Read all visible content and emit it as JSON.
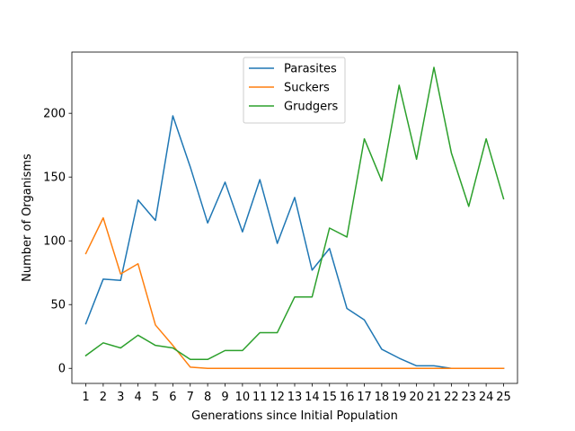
{
  "chart_data": {
    "type": "line",
    "title": "",
    "xlabel": "Generations since Initial Population",
    "ylabel": "Number of Organisms",
    "x": [
      1,
      2,
      3,
      4,
      5,
      6,
      7,
      8,
      9,
      10,
      11,
      12,
      13,
      14,
      15,
      16,
      17,
      18,
      19,
      20,
      21,
      22,
      23,
      24,
      25
    ],
    "x_tick_labels": [
      "1",
      "2",
      "3",
      "4",
      "5",
      "6",
      "7",
      "8",
      "9",
      "10",
      "11",
      "12",
      "13",
      "14",
      "15",
      "16",
      "17",
      "18",
      "19",
      "20",
      "21",
      "22",
      "23",
      "24",
      "25"
    ],
    "y_ticks": [
      0,
      50,
      100,
      150,
      200
    ],
    "y_tick_labels": [
      "0",
      "50",
      "100",
      "150",
      "200"
    ],
    "xlim": [
      0.2,
      25.8
    ],
    "ylim": [
      -11.8,
      248
    ],
    "grid": false,
    "legend_position": "top-center",
    "series": [
      {
        "name": "Parasites",
        "color": "#1f77b4",
        "values": [
          35,
          70,
          69,
          132,
          116,
          198,
          158,
          114,
          146,
          107,
          148,
          98,
          134,
          77,
          94,
          47,
          38,
          15,
          8,
          2,
          2,
          0,
          0,
          0,
          0
        ]
      },
      {
        "name": "Suckers",
        "color": "#ff7f0e",
        "values": [
          90,
          118,
          74,
          82,
          34,
          18,
          1,
          0,
          0,
          0,
          0,
          0,
          0,
          0,
          0,
          0,
          0,
          0,
          0,
          0,
          0,
          0,
          0,
          0,
          0
        ]
      },
      {
        "name": "Grudgers",
        "color": "#2ca02c",
        "values": [
          10,
          20,
          16,
          26,
          18,
          16,
          7,
          7,
          14,
          14,
          28,
          28,
          56,
          56,
          110,
          103,
          180,
          147,
          222,
          164,
          236,
          169,
          127,
          180,
          133
        ]
      }
    ]
  }
}
